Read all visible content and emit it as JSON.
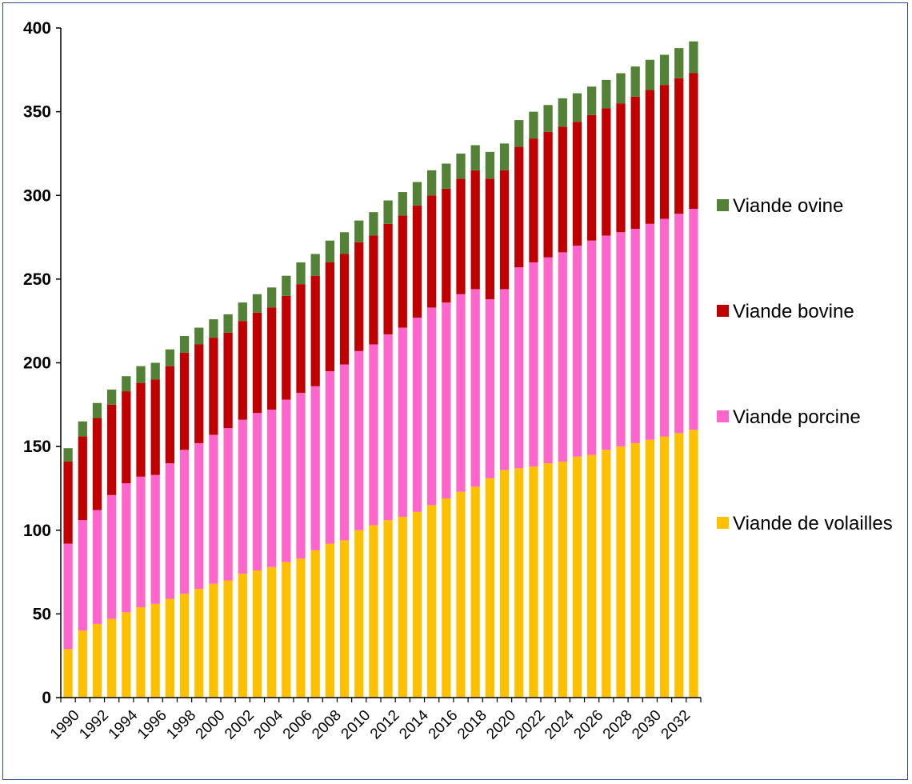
{
  "chart_data": {
    "type": "bar",
    "stacked": true,
    "title": "",
    "xlabel": "",
    "ylabel": "",
    "ylim": [
      0,
      400
    ],
    "yticks": [
      0,
      50,
      100,
      150,
      200,
      250,
      300,
      350,
      400
    ],
    "grid": false,
    "legend_position": "right",
    "categories": [
      1990,
      1991,
      1992,
      1993,
      1994,
      1995,
      1996,
      1997,
      1998,
      1999,
      2000,
      2001,
      2002,
      2003,
      2004,
      2005,
      2006,
      2007,
      2008,
      2009,
      2010,
      2011,
      2012,
      2013,
      2014,
      2015,
      2016,
      2017,
      2018,
      2019,
      2020,
      2021,
      2022,
      2023,
      2024,
      2025,
      2026,
      2027,
      2028,
      2029,
      2030,
      2031,
      2032,
      2033
    ],
    "xtick_labels": [
      "1990",
      "1992",
      "1994",
      "1996",
      "1998",
      "2000",
      "2002",
      "2004",
      "2006",
      "2008",
      "2010",
      "2012",
      "2014",
      "2016",
      "2018",
      "2020",
      "2022",
      "2024",
      "2026",
      "2028",
      "2030",
      "2032"
    ],
    "series": [
      {
        "name": "Viande de volailles",
        "color": "#ffc000",
        "values": [
          29,
          40,
          44,
          47,
          51,
          54,
          56,
          59,
          62,
          65,
          68,
          70,
          74,
          76,
          78,
          81,
          83,
          88,
          92,
          94,
          100,
          103,
          106,
          108,
          111,
          115,
          119,
          123,
          126,
          131,
          136,
          137,
          138,
          140,
          141,
          144,
          145,
          148,
          150,
          152,
          154,
          156,
          158,
          160
        ]
      },
      {
        "name": "Viande porcine",
        "color": "#ff66cc",
        "values": [
          63,
          66,
          68,
          74,
          77,
          78,
          77,
          81,
          86,
          87,
          89,
          91,
          92,
          94,
          94,
          97,
          99,
          98,
          103,
          105,
          107,
          108,
          111,
          113,
          116,
          118,
          117,
          118,
          118,
          107,
          108,
          120,
          122,
          123,
          125,
          126,
          128,
          128,
          128,
          128,
          129,
          130,
          131,
          132
        ]
      },
      {
        "name": "Viande bovine",
        "color": "#c00000",
        "values": [
          49,
          50,
          55,
          54,
          55,
          56,
          57,
          58,
          58,
          59,
          58,
          57,
          59,
          60,
          61,
          62,
          65,
          66,
          65,
          66,
          65,
          65,
          66,
          67,
          67,
          67,
          68,
          69,
          71,
          72,
          71,
          72,
          74,
          75,
          75,
          74,
          75,
          76,
          77,
          79,
          80,
          80,
          81,
          81
        ]
      },
      {
        "name": "Viande ovine",
        "color": "#538135",
        "values": [
          8,
          9,
          9,
          9,
          9,
          10,
          10,
          10,
          10,
          10,
          11,
          11,
          11,
          11,
          12,
          12,
          13,
          13,
          13,
          13,
          13,
          14,
          14,
          14,
          14,
          15,
          15,
          15,
          15,
          16,
          16,
          16,
          16,
          16,
          17,
          17,
          17,
          17,
          18,
          18,
          18,
          18,
          18,
          19
        ]
      }
    ],
    "legend_order": [
      "Viande ovine",
      "Viande bovine",
      "Viande porcine",
      "Viande de volailles"
    ]
  }
}
